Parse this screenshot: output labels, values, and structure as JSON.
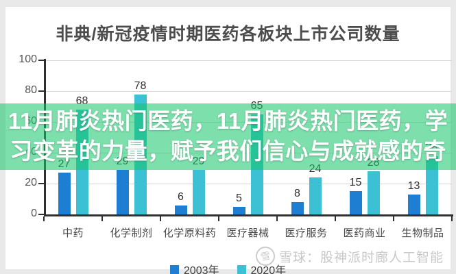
{
  "page": {
    "watermark": {
      "icon_glyph": "雪",
      "icon_name": "snowball-logo-icon",
      "text": "雪球：股神派时廊人工智能"
    }
  },
  "overlay": {
    "lines": [
      "11月肺炎热门医药，11月肺炎热门医药，学",
      "习变革的力量，赋予我们信心与成就感的奇"
    ]
  },
  "colors": {
    "series_2003": "#1e7fd2",
    "series_2020": "#3cc0d4",
    "overlay_band": "rgba(22,198,107,0.56)",
    "overlay_text": "#ffffff",
    "axis": "#2f2f2f",
    "gridline": "#d6d6d6"
  },
  "chart_data": {
    "type": "bar",
    "title": "非典/新冠疫情时期医药各板块上市公司数量",
    "categories": [
      "中药",
      "化学制剂",
      "化学原料药",
      "医疗器械",
      "医疗服务",
      "医药商业",
      "生物制品"
    ],
    "series": [
      {
        "name": "2003年",
        "color": "#1e7fd2",
        "values": [
          27,
          29,
          6,
          5,
          8,
          15,
          13
        ]
      },
      {
        "name": "2020年",
        "color": "#3cc0d4",
        "values": [
          68,
          78,
          29,
          65,
          24,
          28,
          38
        ]
      }
    ],
    "ylim": [
      0,
      100
    ],
    "yticks": [
      0,
      20,
      40,
      60,
      80,
      100
    ],
    "grid": true,
    "legend_position": "bottom",
    "bar_value_labels": true
  }
}
